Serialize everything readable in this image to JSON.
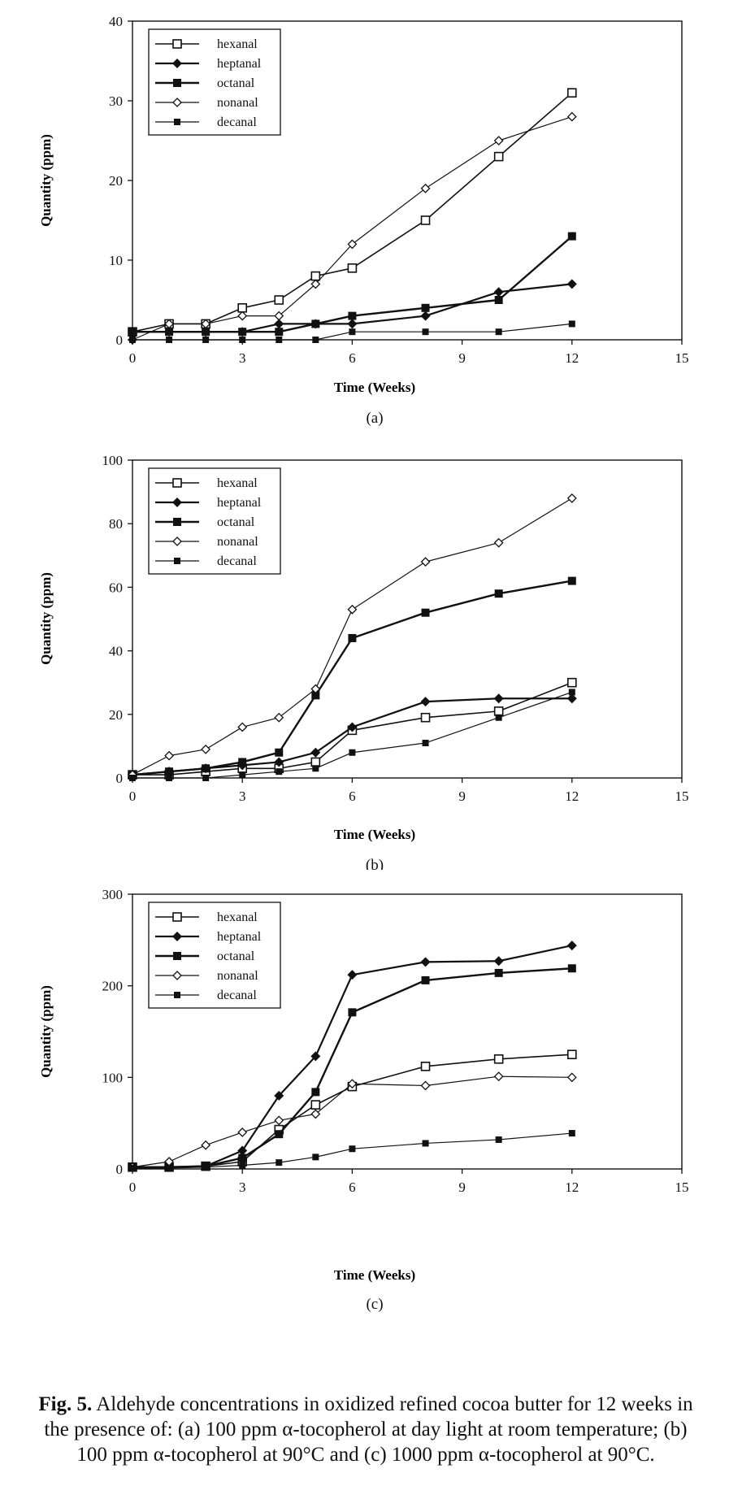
{
  "chart_data": [
    {
      "type": "line",
      "panel_label": "(a)",
      "ylabel": "Quantity (ppm)",
      "xlabel": "Time (Weeks)",
      "xlim": [
        0,
        15
      ],
      "ylim": [
        0,
        40
      ],
      "xticks": [
        0,
        3,
        6,
        9,
        12,
        15
      ],
      "yticks": [
        0,
        10,
        20,
        30,
        40
      ],
      "grid": false,
      "legend_position": "top-left",
      "series": [
        {
          "name": "hexanal",
          "marker": "open-square",
          "x": [
            0,
            1,
            2,
            3,
            4,
            5,
            6,
            8,
            10,
            12
          ],
          "y": [
            1,
            2,
            2,
            4,
            5,
            8,
            9,
            15,
            23,
            31
          ]
        },
        {
          "name": "heptanal",
          "marker": "filled-diamond",
          "x": [
            0,
            1,
            2,
            3,
            4,
            5,
            6,
            8,
            10,
            12
          ],
          "y": [
            1,
            1,
            1,
            1,
            2,
            2,
            2,
            3,
            6,
            7
          ]
        },
        {
          "name": "octanal",
          "marker": "filled-square",
          "x": [
            0,
            1,
            2,
            3,
            4,
            5,
            6,
            8,
            10,
            12
          ],
          "y": [
            1,
            1,
            1,
            1,
            1,
            2,
            3,
            4,
            5,
            13
          ]
        },
        {
          "name": "nonanal",
          "marker": "open-diamond",
          "x": [
            0,
            1,
            2,
            3,
            4,
            5,
            6,
            8,
            10,
            12
          ],
          "y": [
            0,
            2,
            2,
            3,
            3,
            7,
            12,
            19,
            25,
            28
          ]
        },
        {
          "name": "decanal",
          "marker": "filled-square-small",
          "x": [
            0,
            1,
            2,
            3,
            4,
            5,
            6,
            8,
            10,
            12
          ],
          "y": [
            0,
            0,
            0,
            0,
            0,
            0,
            1,
            1,
            1,
            2
          ]
        }
      ]
    },
    {
      "type": "line",
      "panel_label": "(b)",
      "ylabel": "Quantity (ppm)",
      "xlabel": "Time (Weeks)",
      "xlim": [
        0,
        15
      ],
      "ylim": [
        0,
        100
      ],
      "xticks": [
        0,
        3,
        6,
        9,
        12,
        15
      ],
      "yticks": [
        0,
        20,
        40,
        60,
        80,
        100
      ],
      "grid": false,
      "legend_position": "top-left",
      "series": [
        {
          "name": "hexanal",
          "marker": "open-square",
          "x": [
            0,
            1,
            2,
            3,
            4,
            5,
            6,
            8,
            10,
            12
          ],
          "y": [
            1,
            1,
            2,
            3,
            3,
            5,
            15,
            19,
            21,
            30
          ]
        },
        {
          "name": "heptanal",
          "marker": "filled-diamond",
          "x": [
            0,
            1,
            2,
            3,
            4,
            5,
            6,
            8,
            10,
            12
          ],
          "y": [
            1,
            2,
            3,
            4,
            5,
            8,
            16,
            24,
            25,
            25
          ]
        },
        {
          "name": "octanal",
          "marker": "filled-square",
          "x": [
            0,
            1,
            2,
            3,
            4,
            5,
            6,
            8,
            10,
            12
          ],
          "y": [
            1,
            2,
            3,
            5,
            8,
            26,
            44,
            52,
            58,
            62
          ]
        },
        {
          "name": "nonanal",
          "marker": "open-diamond",
          "x": [
            0,
            1,
            2,
            3,
            4,
            5,
            6,
            8,
            10,
            12
          ],
          "y": [
            1,
            7,
            9,
            16,
            19,
            28,
            53,
            68,
            74,
            88
          ]
        },
        {
          "name": "decanal",
          "marker": "filled-square-small",
          "x": [
            0,
            1,
            2,
            3,
            4,
            5,
            6,
            8,
            10,
            12
          ],
          "y": [
            0,
            0,
            0,
            1,
            2,
            3,
            8,
            11,
            19,
            27
          ]
        }
      ]
    },
    {
      "type": "line",
      "panel_label": "(c)",
      "ylabel": "Quantity (ppm)",
      "xlabel": "Time (Weeks)",
      "xlim": [
        0,
        15
      ],
      "ylim": [
        0,
        300
      ],
      "xticks": [
        0,
        3,
        6,
        9,
        12,
        15
      ],
      "yticks": [
        0,
        100,
        200,
        300
      ],
      "grid": false,
      "legend_position": "top-left",
      "series": [
        {
          "name": "hexanal",
          "marker": "open-square",
          "x": [
            0,
            1,
            2,
            3,
            4,
            5,
            6,
            8,
            10,
            12
          ],
          "y": [
            2,
            2,
            3,
            8,
            43,
            70,
            90,
            112,
            120,
            125
          ]
        },
        {
          "name": "heptanal",
          "marker": "filled-diamond",
          "x": [
            0,
            1,
            2,
            3,
            4,
            5,
            6,
            8,
            10,
            12
          ],
          "y": [
            2,
            2,
            3,
            20,
            80,
            123,
            212,
            226,
            227,
            244
          ]
        },
        {
          "name": "octanal",
          "marker": "filled-square",
          "x": [
            0,
            1,
            2,
            3,
            4,
            5,
            6,
            8,
            10,
            12
          ],
          "y": [
            2,
            2,
            3,
            12,
            38,
            84,
            171,
            206,
            214,
            219
          ]
        },
        {
          "name": "nonanal",
          "marker": "open-diamond",
          "x": [
            0,
            1,
            2,
            3,
            4,
            5,
            6,
            8,
            10,
            12
          ],
          "y": [
            2,
            8,
            26,
            40,
            53,
            60,
            93,
            91,
            101,
            100
          ]
        },
        {
          "name": "decanal",
          "marker": "filled-square-small",
          "x": [
            0,
            1,
            2,
            3,
            4,
            5,
            6,
            8,
            10,
            12
          ],
          "y": [
            1,
            1,
            2,
            4,
            7,
            13,
            22,
            28,
            32,
            39
          ]
        }
      ]
    }
  ],
  "caption": {
    "fig_label": "Fig. 5.",
    "text": "Aldehyde concentrations in oxidized refined cocoa butter for 12 weeks in the presence of: (a) 100 ppm α-tocopherol at day light at room temperature; (b) 100 ppm α-tocopherol at 90°C and (c) 1000 ppm α-tocopherol at 90°C."
  }
}
